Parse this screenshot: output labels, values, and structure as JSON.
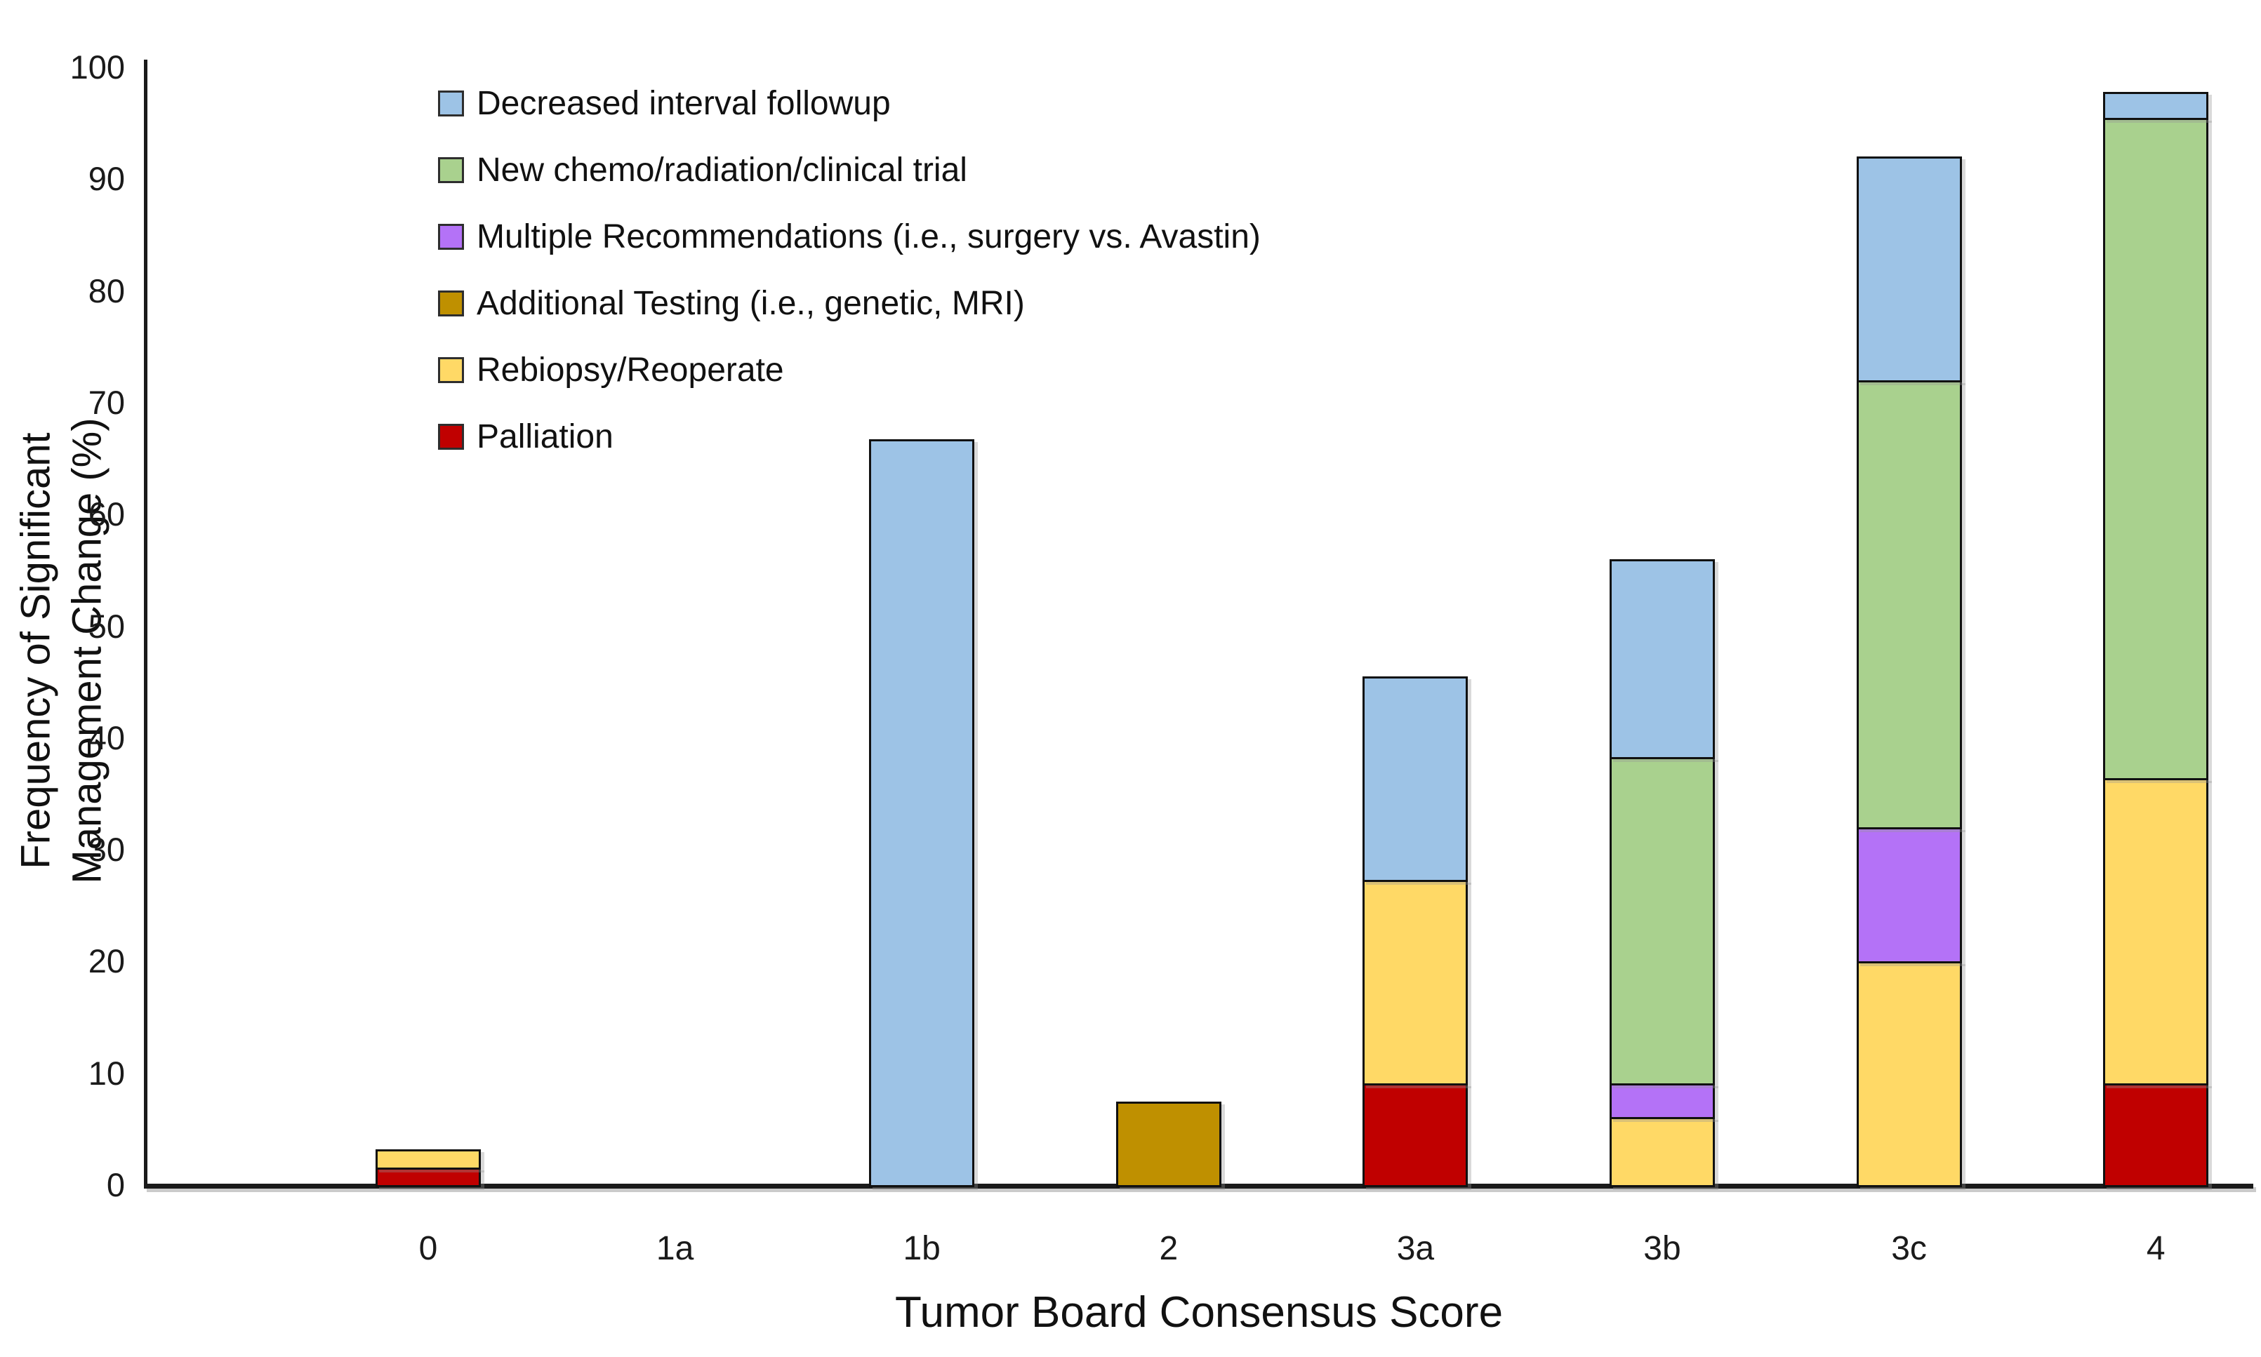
{
  "chart_data": {
    "type": "bar",
    "stacked": true,
    "xlabel": "Tumor Board Consensus Score",
    "ylabel_line1": "Frequency of Significant",
    "ylabel_line2": "Management Change (%)",
    "ylim": [
      0,
      100
    ],
    "ytick_step": 10,
    "yticks": [
      0,
      10,
      20,
      30,
      40,
      50,
      60,
      70,
      80,
      90,
      100
    ],
    "grid": false,
    "legend_position": "top-left-inside",
    "categories": [
      "0",
      "1a",
      "1b",
      "2",
      "3a",
      "3b",
      "3c",
      "4"
    ],
    "series": [
      {
        "name": "Palliation",
        "color": "#C00000",
        "values": [
          1.6,
          0,
          0,
          0,
          9.1,
          0,
          0,
          9.1
        ]
      },
      {
        "name": "Rebiopsy/Reoperate",
        "color": "#FFD966",
        "values": [
          1.6,
          0,
          0,
          0,
          18.2,
          6.1,
          20,
          27.3
        ]
      },
      {
        "name": "Additional Testing (i.e., genetic, MRI)",
        "color": "#BF9000",
        "values": [
          0,
          0,
          0,
          7.5,
          0,
          0,
          0,
          0
        ]
      },
      {
        "name": "Multiple Recommendations (i.e., surgery vs. Avastin)",
        "color": "#B472F7",
        "values": [
          0,
          0,
          0,
          0,
          0,
          3.0,
          12,
          0
        ]
      },
      {
        "name": "New chemo/radiation/clinical trial",
        "color": "#A9D18E",
        "values": [
          0,
          0,
          0,
          0,
          0,
          29.2,
          40,
          59.1
        ]
      },
      {
        "name": "Decreased interval followup",
        "color": "#9DC3E6",
        "values": [
          0,
          0,
          66.7,
          0,
          18.2,
          17.7,
          20,
          2.3
        ]
      }
    ],
    "bar_totals": [
      3.2,
      0,
      66.7,
      7.5,
      45.5,
      56.0,
      92.0,
      97.8
    ],
    "legend": [
      {
        "label": "Decreased interval followup",
        "color": "#9DC3E6"
      },
      {
        "label": "New chemo/radiation/clinical trial",
        "color": "#A9D18E"
      },
      {
        "label": "Multiple Recommendations (i.e., surgery vs. Avastin)",
        "color": "#B472F7"
      },
      {
        "label": "Additional Testing (i.e., genetic, MRI)",
        "color": "#BF9000"
      },
      {
        "label": "Rebiopsy/Reoperate",
        "color": "#FFD966"
      },
      {
        "label": "Palliation",
        "color": "#C00000"
      }
    ]
  }
}
